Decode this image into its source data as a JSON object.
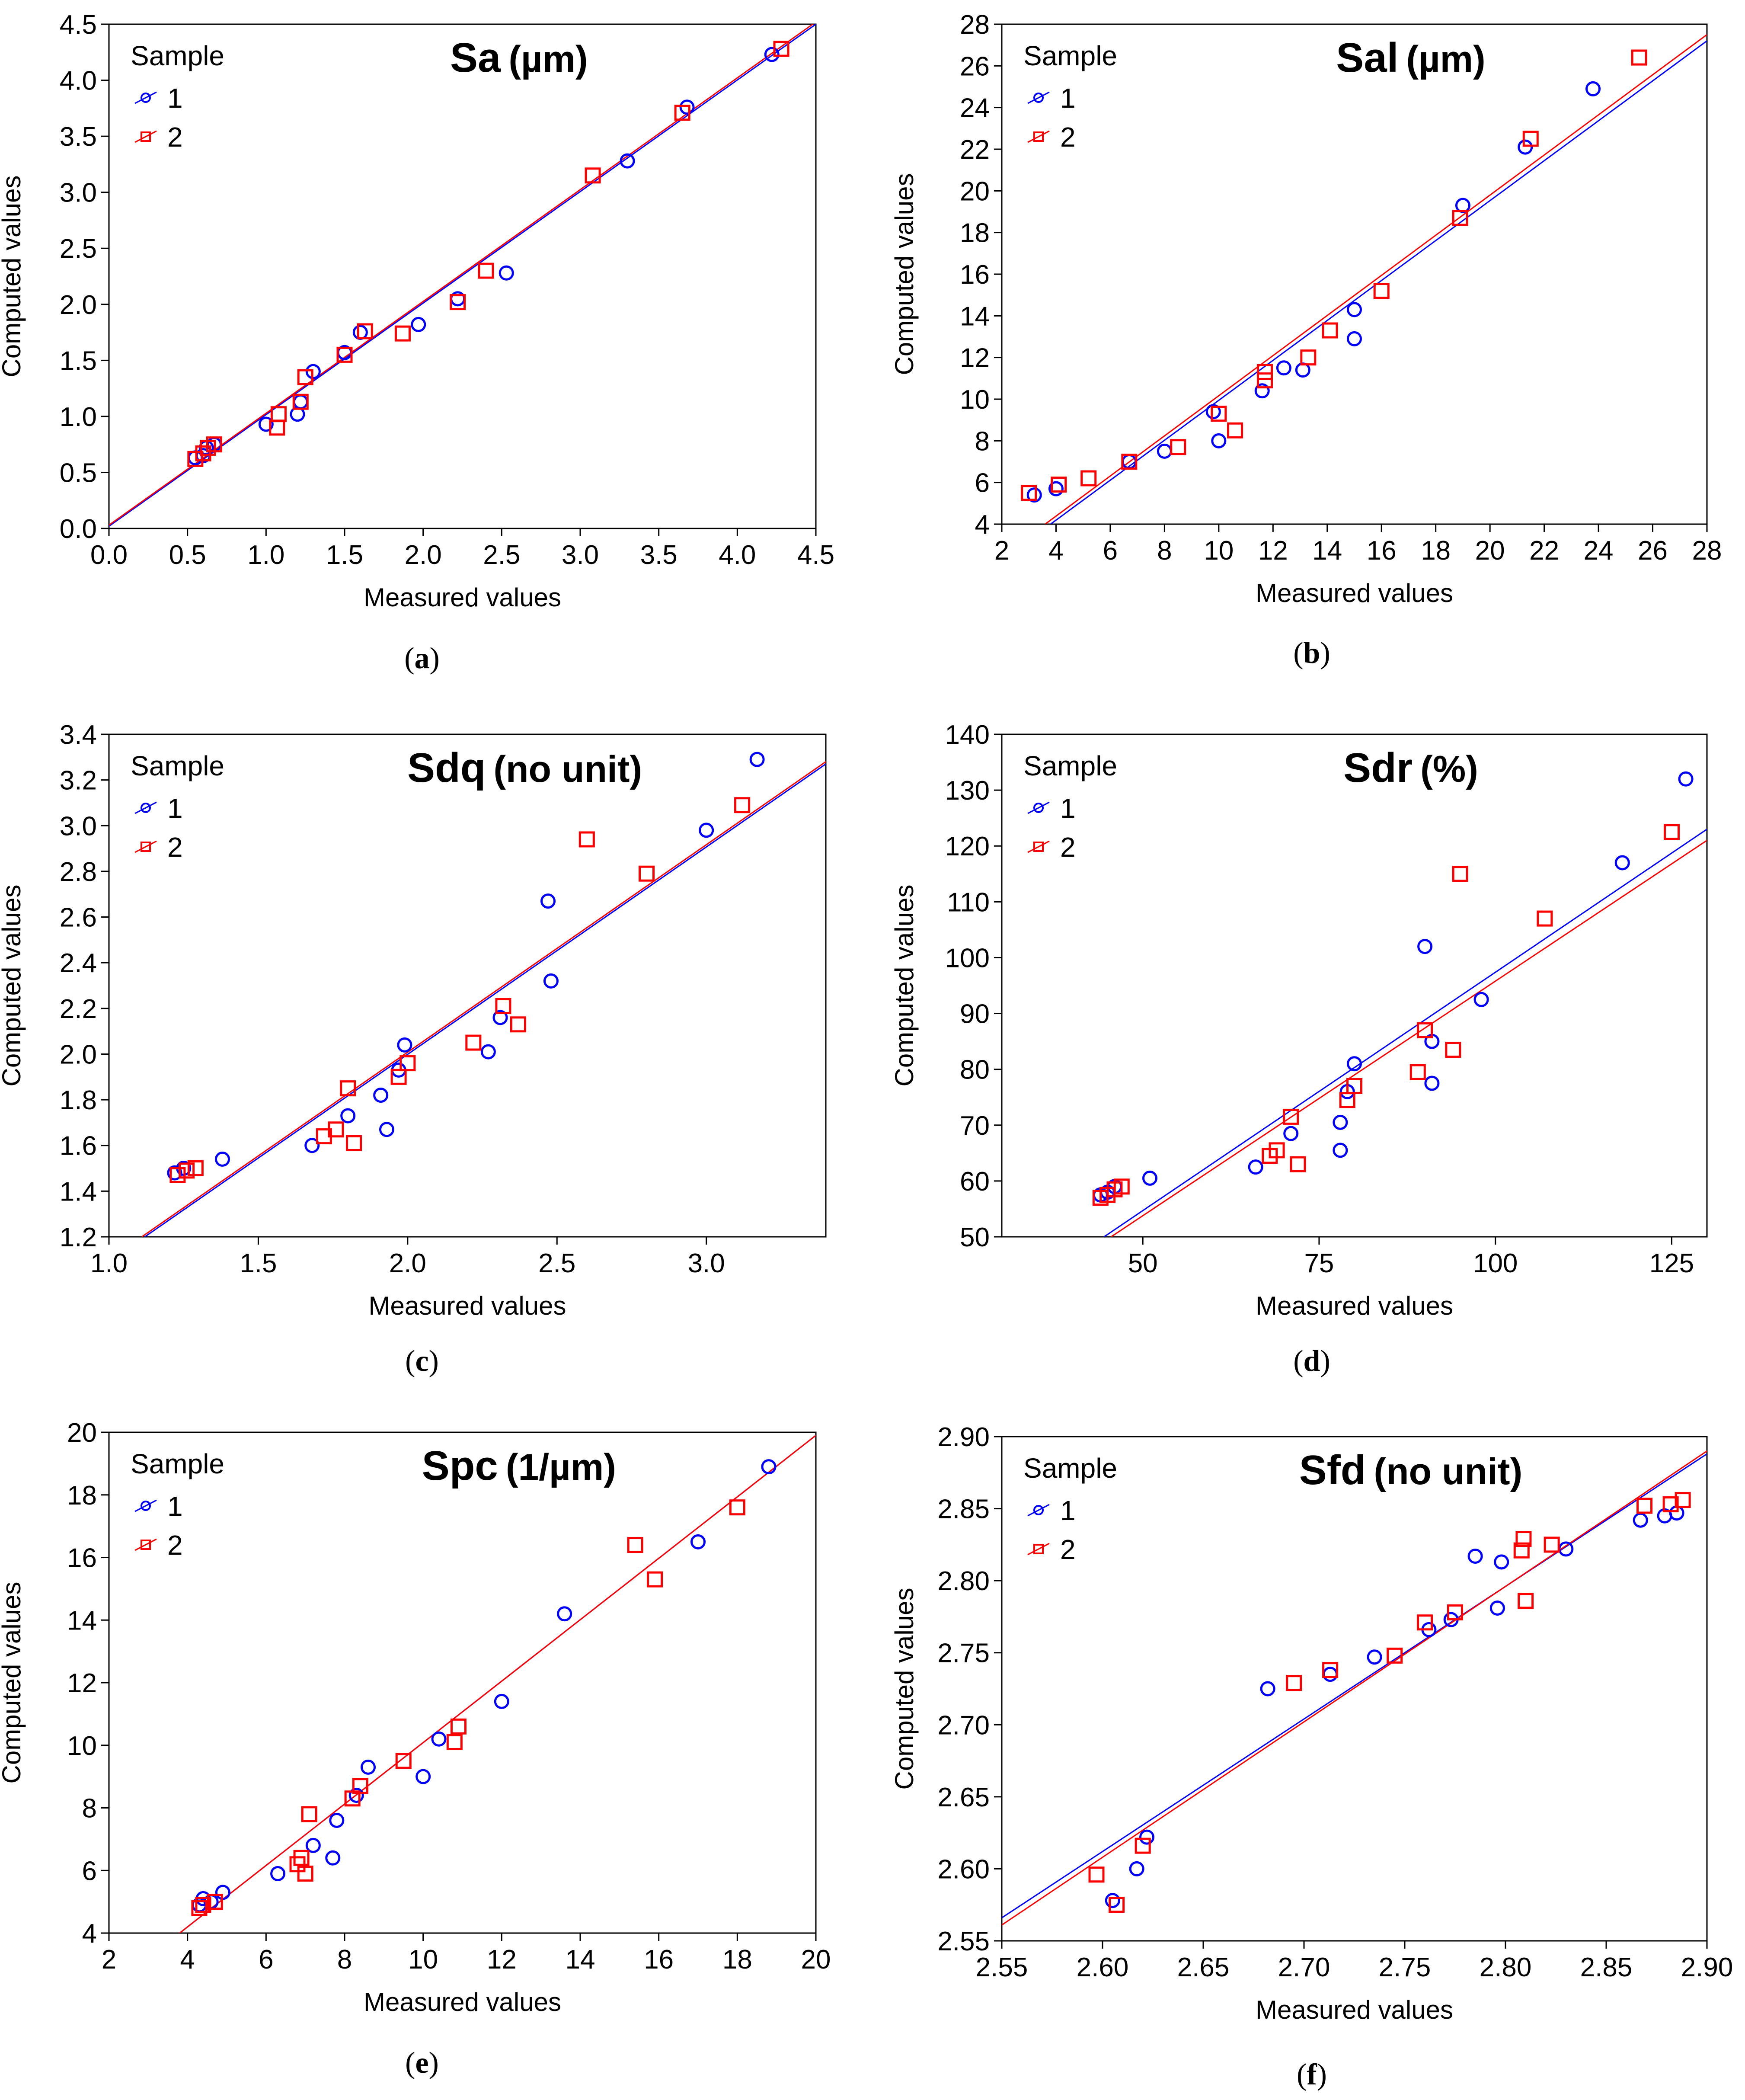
{
  "figure": {
    "colors": {
      "sample_1": "#0000ff",
      "sample_2": "#ff0000",
      "axis": "#000000"
    }
  },
  "chart_data": [
    {
      "type": "scatter",
      "panel_label": "a",
      "title": "Sa",
      "title_unit": "(µm)",
      "xlabel": "Measured values",
      "ylabel": "Computed values",
      "xlim": [
        0,
        4.5
      ],
      "ylim": [
        0,
        4.5
      ],
      "xticks": [
        "0.0",
        "0.5",
        "1.0",
        "1.5",
        "2.0",
        "2.5",
        "3.0",
        "3.5",
        "4.0",
        "4.5"
      ],
      "yticks": [
        "0.0",
        "0.5",
        "1.0",
        "1.5",
        "2.0",
        "2.5",
        "3.0",
        "3.5",
        "4.0",
        "4.5"
      ],
      "legend": {
        "title": "Sample",
        "position": "top-left",
        "entries": [
          "1",
          "2"
        ]
      },
      "series": [
        {
          "name": "1",
          "marker": "circle",
          "color": "#0000ff",
          "x": [
            0.55,
            0.6,
            0.62,
            0.67,
            1.0,
            1.2,
            1.22,
            1.3,
            1.5,
            1.6,
            1.97,
            2.22,
            2.53,
            3.3,
            3.68,
            4.22
          ],
          "y": [
            0.63,
            0.65,
            0.72,
            0.75,
            0.93,
            1.02,
            1.13,
            1.4,
            1.57,
            1.75,
            1.82,
            2.05,
            2.28,
            3.28,
            3.76,
            4.23
          ],
          "fit_line": [
            [
              0,
              0.02
            ],
            [
              4.5,
              4.5
            ]
          ]
        },
        {
          "name": "2",
          "marker": "square",
          "color": "#ff0000",
          "x": [
            0.55,
            0.6,
            0.63,
            0.67,
            1.07,
            1.08,
            1.22,
            1.25,
            1.5,
            1.63,
            1.87,
            2.22,
            2.4,
            3.08,
            3.65,
            4.28
          ],
          "y": [
            0.62,
            0.67,
            0.72,
            0.75,
            0.9,
            1.02,
            1.13,
            1.35,
            1.55,
            1.76,
            1.74,
            2.02,
            2.3,
            3.15,
            3.71,
            4.28
          ],
          "fit_line": [
            [
              0,
              0.03
            ],
            [
              4.5,
              4.52
            ]
          ]
        }
      ]
    },
    {
      "type": "scatter",
      "panel_label": "b",
      "title": "Sal",
      "title_unit": "(µm)",
      "xlabel": "Measured values",
      "ylabel": "Computed values",
      "xlim": [
        2,
        28
      ],
      "ylim": [
        4,
        28
      ],
      "xticks": [
        "2",
        "4",
        "6",
        "8",
        "10",
        "12",
        "14",
        "16",
        "18",
        "20",
        "22",
        "24",
        "26",
        "28"
      ],
      "yticks": [
        "4",
        "6",
        "8",
        "10",
        "12",
        "14",
        "16",
        "18",
        "20",
        "22",
        "24",
        "26",
        "28"
      ],
      "legend": {
        "title": "Sample",
        "position": "top-left",
        "entries": [
          "1",
          "2"
        ]
      },
      "series": [
        {
          "name": "1",
          "marker": "circle",
          "color": "#0000ff",
          "x": [
            3.2,
            4.0,
            6.7,
            8.0,
            9.8,
            10.0,
            11.6,
            12.4,
            13.1,
            15.0,
            15.0,
            19.0,
            21.3,
            23.8
          ],
          "y": [
            5.4,
            5.7,
            7.0,
            7.5,
            9.4,
            8.0,
            10.4,
            11.5,
            11.4,
            14.3,
            12.9,
            19.3,
            22.1,
            24.9
          ],
          "fit_line": [
            [
              3.8,
              4
            ],
            [
              28,
              27.2
            ]
          ]
        },
        {
          "name": "2",
          "marker": "square",
          "color": "#ff0000",
          "x": [
            3.0,
            4.1,
            5.2,
            6.7,
            8.5,
            10.0,
            10.6,
            11.7,
            11.7,
            13.3,
            14.1,
            16.0,
            18.9,
            21.5,
            25.5
          ],
          "y": [
            5.5,
            5.9,
            6.2,
            7.0,
            7.7,
            9.3,
            8.5,
            10.9,
            11.3,
            12.0,
            13.3,
            15.2,
            18.7,
            22.5,
            26.4
          ],
          "fit_line": [
            [
              3.6,
              4
            ],
            [
              28,
              27.5
            ]
          ]
        }
      ]
    },
    {
      "type": "scatter",
      "panel_label": "c",
      "title": "Sdq",
      "title_unit": "(no unit)",
      "xlabel": "Measured values",
      "ylabel": "Computed values",
      "xlim": [
        1.0,
        3.4
      ],
      "ylim": [
        1.2,
        3.4
      ],
      "xticks": [
        "1.0",
        "1.5",
        "2.0",
        "2.5",
        "3.0"
      ],
      "xtick_values": [
        1.0,
        1.5,
        2.0,
        2.5,
        3.0
      ],
      "yticks": [
        "1.2",
        "1.4",
        "1.6",
        "1.8",
        "2.0",
        "2.2",
        "2.4",
        "2.6",
        "2.8",
        "3.0",
        "3.2",
        "3.4"
      ],
      "legend": {
        "title": "Sample",
        "position": "top-left",
        "entries": [
          "1",
          "2"
        ]
      },
      "series": [
        {
          "name": "1",
          "marker": "circle",
          "color": "#0000ff",
          "x": [
            1.22,
            1.25,
            1.38,
            1.68,
            1.8,
            1.91,
            1.93,
            1.97,
            1.99,
            2.27,
            2.31,
            2.47,
            2.48,
            3.0,
            3.17
          ],
          "y": [
            1.48,
            1.5,
            1.54,
            1.6,
            1.73,
            1.82,
            1.67,
            1.93,
            2.04,
            2.01,
            2.16,
            2.67,
            2.32,
            2.98,
            3.29
          ],
          "fit_line": [
            [
              1.12,
              1.2
            ],
            [
              3.4,
              3.27
            ]
          ]
        },
        {
          "name": "2",
          "marker": "square",
          "color": "#ff0000",
          "x": [
            1.23,
            1.26,
            1.29,
            1.72,
            1.76,
            1.8,
            1.82,
            1.97,
            2.0,
            2.22,
            2.32,
            2.37,
            2.6,
            2.8,
            3.12
          ],
          "y": [
            1.47,
            1.49,
            1.5,
            1.64,
            1.67,
            1.85,
            1.61,
            1.9,
            1.96,
            2.05,
            2.21,
            2.13,
            2.94,
            2.79,
            3.09
          ],
          "fit_line": [
            [
              1.11,
              1.2
            ],
            [
              3.4,
              3.28
            ]
          ]
        }
      ]
    },
    {
      "type": "scatter",
      "panel_label": "d",
      "title": "Sdr",
      "title_unit": "(%)",
      "xlabel": "Measured values",
      "ylabel": "Computed values",
      "xlim": [
        30,
        130
      ],
      "ylim": [
        50,
        140
      ],
      "xticks": [
        "50",
        "75",
        "100",
        "125"
      ],
      "xtick_values": [
        50,
        75,
        100,
        125
      ],
      "yticks": [
        "50",
        "60",
        "70",
        "80",
        "90",
        "100",
        "110",
        "120",
        "130",
        "140"
      ],
      "legend": {
        "title": "Sample",
        "position": "top-left",
        "entries": [
          "1",
          "2"
        ]
      },
      "series": [
        {
          "name": "1",
          "marker": "circle",
          "color": "#0000ff",
          "x": [
            44,
            45,
            46,
            51,
            66,
            71,
            78,
            78,
            79,
            80,
            90,
            91,
            91,
            98,
            118,
            127
          ],
          "y": [
            57.5,
            58,
            59,
            60.5,
            62.5,
            68.5,
            70.5,
            65.5,
            76,
            81,
            102,
            77.5,
            85,
            92.5,
            117,
            132
          ],
          "fit_line": [
            [
              44.5,
              50
            ],
            [
              130,
              123
            ]
          ]
        },
        {
          "name": "2",
          "marker": "square",
          "color": "#ff0000",
          "x": [
            44,
            45,
            46,
            47,
            68,
            69,
            71,
            72,
            79,
            80,
            89,
            90,
            94,
            95,
            107,
            125
          ],
          "y": [
            57,
            57.5,
            58.5,
            59,
            64.5,
            65.5,
            71.5,
            63,
            74.5,
            77,
            79.5,
            87,
            83.5,
            115,
            107,
            122.5
          ],
          "fit_line": [
            [
              45.5,
              50
            ],
            [
              130,
              121
            ]
          ]
        }
      ]
    },
    {
      "type": "scatter",
      "panel_label": "e",
      "title": "Spc",
      "title_unit": "(1/µm)",
      "xlabel": "Measured values",
      "ylabel": "Computed values",
      "xlim": [
        2,
        20
      ],
      "ylim": [
        4,
        20
      ],
      "xticks": [
        "2",
        "4",
        "6",
        "8",
        "10",
        "12",
        "14",
        "16",
        "18",
        "20"
      ],
      "yticks": [
        "4",
        "6",
        "8",
        "10",
        "12",
        "14",
        "16",
        "18",
        "20"
      ],
      "legend": {
        "title": "Sample",
        "position": "top-left",
        "entries": [
          "1",
          "2"
        ]
      },
      "series": [
        {
          "name": "1",
          "marker": "circle",
          "color": "#0000ff",
          "x": [
            4.3,
            4.4,
            4.6,
            4.9,
            6.3,
            7.2,
            7.7,
            7.8,
            8.3,
            8.6,
            10.0,
            10.4,
            12.0,
            13.6,
            17.0,
            18.8
          ],
          "y": [
            4.9,
            5.1,
            5.0,
            5.3,
            5.9,
            6.8,
            6.4,
            7.6,
            8.4,
            9.3,
            9.0,
            10.2,
            11.4,
            14.2,
            16.5,
            18.9
          ],
          "fit_line": [
            [
              3.8,
              4
            ],
            [
              20,
              19.9
            ]
          ]
        },
        {
          "name": "2",
          "marker": "square",
          "color": "#ff0000",
          "x": [
            4.3,
            4.4,
            4.7,
            6.8,
            6.9,
            7.0,
            7.1,
            8.2,
            8.4,
            9.5,
            10.8,
            10.9,
            15.4,
            15.9,
            18.0
          ],
          "y": [
            4.8,
            4.9,
            5.0,
            6.2,
            6.4,
            5.9,
            7.8,
            8.3,
            8.7,
            9.5,
            10.1,
            10.6,
            16.4,
            15.3,
            17.6
          ],
          "fit_line": [
            [
              3.8,
              4
            ],
            [
              20,
              19.9
            ]
          ]
        }
      ]
    },
    {
      "type": "scatter",
      "panel_label": "f",
      "title": "Sfd",
      "title_unit": "(no unit)",
      "xlabel": "Measured values",
      "ylabel": "Computed values",
      "xlim": [
        2.55,
        2.9
      ],
      "ylim": [
        2.55,
        2.9
      ],
      "xticks": [
        "2.55",
        "2.60",
        "2.65",
        "2.70",
        "2.75",
        "2.80",
        "2.85",
        "2.90"
      ],
      "yticks": [
        "2.55",
        "2.60",
        "2.65",
        "2.70",
        "2.75",
        "2.80",
        "2.85",
        "2.90"
      ],
      "legend": {
        "title": "Sample",
        "position": "top-left",
        "entries": [
          "1",
          "2"
        ]
      },
      "series": [
        {
          "name": "1",
          "marker": "circle",
          "color": "#0000ff",
          "x": [
            2.605,
            2.617,
            2.622,
            2.682,
            2.713,
            2.735,
            2.762,
            2.773,
            2.785,
            2.796,
            2.798,
            2.83,
            2.867,
            2.879,
            2.885
          ],
          "y": [
            2.578,
            2.6,
            2.622,
            2.725,
            2.735,
            2.747,
            2.766,
            2.773,
            2.817,
            2.781,
            2.813,
            2.822,
            2.842,
            2.845,
            2.847
          ],
          "fit_line": [
            [
              2.55,
              2.566
            ],
            [
              2.9,
              2.888
            ]
          ]
        },
        {
          "name": "2",
          "marker": "square",
          "color": "#ff0000",
          "x": [
            2.597,
            2.607,
            2.62,
            2.695,
            2.713,
            2.745,
            2.76,
            2.775,
            2.808,
            2.809,
            2.81,
            2.823,
            2.869,
            2.882,
            2.888
          ],
          "y": [
            2.596,
            2.575,
            2.616,
            2.729,
            2.738,
            2.748,
            2.771,
            2.778,
            2.821,
            2.829,
            2.786,
            2.825,
            2.852,
            2.853,
            2.856
          ],
          "fit_line": [
            [
              2.55,
              2.561
            ],
            [
              2.9,
              2.89
            ]
          ]
        }
      ]
    }
  ]
}
